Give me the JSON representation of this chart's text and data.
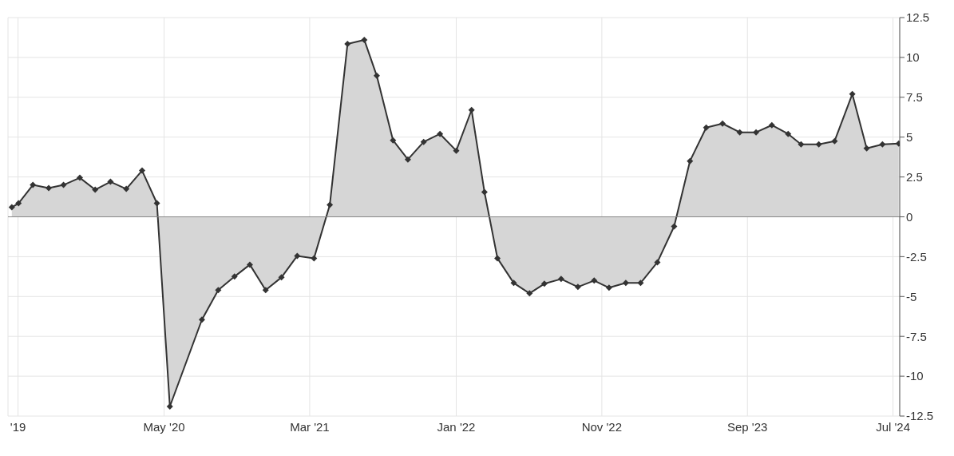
{
  "chart_data": {
    "type": "area",
    "x": [
      "2019-06-18",
      "2019-07-02",
      "2019-08-01",
      "2019-09-03",
      "2019-10-04",
      "2019-11-07",
      "2019-12-09",
      "2020-01-10",
      "2020-02-12",
      "2020-03-16",
      "2020-04-16",
      "2020-05-13",
      "2020-07-19",
      "2020-08-22",
      "2020-09-25",
      "2020-10-27",
      "2020-11-29",
      "2021-01-01",
      "2021-02-03",
      "2021-03-10",
      "2021-04-12",
      "2021-05-19",
      "2021-06-23",
      "2021-07-19",
      "2021-08-22",
      "2021-09-22",
      "2021-10-25",
      "2021-11-28",
      "2022-01-01",
      "2022-02-02",
      "2022-03-01",
      "2022-03-28",
      "2022-05-01",
      "2022-06-03",
      "2022-07-04",
      "2022-08-08",
      "2022-09-12",
      "2022-10-16",
      "2022-11-16",
      "2022-12-21",
      "2023-01-21",
      "2023-02-25",
      "2023-04-01",
      "2023-05-04",
      "2023-06-07",
      "2023-07-11",
      "2023-08-16",
      "2023-09-19",
      "2023-10-22",
      "2023-11-25",
      "2023-12-22",
      "2024-01-28",
      "2024-03-01",
      "2024-04-07",
      "2024-05-07",
      "2024-06-09",
      "2024-07-13"
    ],
    "values": [
      0.6,
      0.85,
      2.0,
      1.8,
      2.0,
      2.45,
      1.7,
      2.2,
      1.75,
      2.9,
      0.85,
      -11.9,
      -6.45,
      -4.6,
      -3.75,
      -3.0,
      -4.6,
      -3.8,
      -2.45,
      -2.6,
      0.75,
      10.85,
      11.1,
      8.85,
      4.8,
      3.6,
      4.7,
      5.2,
      4.15,
      6.7,
      1.55,
      -2.6,
      -4.15,
      -4.8,
      -4.2,
      -3.9,
      -4.4,
      -4.0,
      -4.45,
      -4.15,
      -4.15,
      -2.85,
      -0.6,
      3.5,
      5.6,
      5.85,
      5.3,
      5.3,
      5.75,
      5.2,
      4.55,
      4.55,
      4.75,
      7.7,
      4.3,
      4.55,
      4.6
    ],
    "color": "#333333",
    "xlim": [
      "2019-06-10",
      "2024-07-15"
    ],
    "xticks": [
      {
        "value": "2019-07",
        "label": "'19"
      },
      {
        "value": "2020-05",
        "label": "May '20"
      },
      {
        "value": "2021-03",
        "label": "Mar '21"
      },
      {
        "value": "2022-01",
        "label": "Jan '22"
      },
      {
        "value": "2022-11",
        "label": "Nov '22"
      },
      {
        "value": "2023-09",
        "label": "Sep '23"
      },
      {
        "value": "2024-07",
        "label": "Jul '24"
      }
    ],
    "ylim": [
      -12.5,
      12.5
    ],
    "yticks": [
      -12.5,
      -10,
      -7.5,
      -5,
      -2.5,
      0,
      2.5,
      5,
      7.5,
      10,
      12.5
    ],
    "grid": true,
    "marker": "diamond",
    "line_style": "solid",
    "legend": false
  }
}
